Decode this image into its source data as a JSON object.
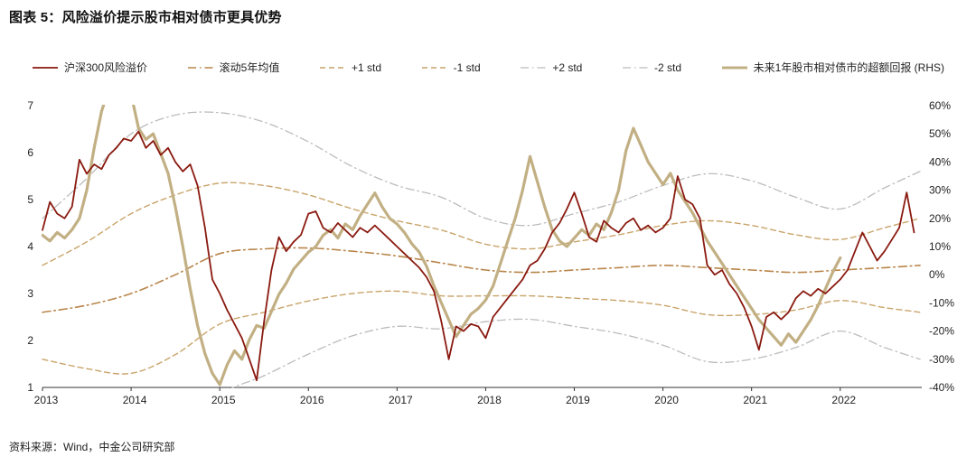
{
  "title": "图表 5：风险溢价提示股市相对债市更具优势",
  "source": "资料来源：Wind，中金公司研究部",
  "colors": {
    "erp": "#8a1a10",
    "mean": "#b9854a",
    "std1": "#c9a46a",
    "std2": "#bcbcbc",
    "rhs": "#c2b084",
    "axis": "#222222"
  },
  "chart_data": {
    "type": "line",
    "title": "图表 5：风险溢价提示股市相对债市更具优势",
    "x_range": [
      2013,
      2022.92
    ],
    "x_ticks": [
      2013,
      2014,
      2015,
      2016,
      2017,
      2018,
      2019,
      2020,
      2021,
      2022
    ],
    "left_axis": {
      "min": 1,
      "max": 7,
      "ticks": [
        1,
        2,
        3,
        4,
        5,
        6,
        7
      ]
    },
    "right_axis": {
      "min": -40,
      "max": 60,
      "tick_values": [
        60,
        50,
        40,
        30,
        20,
        10,
        0,
        -10,
        -20,
        -30,
        -40
      ],
      "tick_labels": [
        "60%",
        "50%",
        "40%",
        "30%",
        "20%",
        "10%",
        "0%",
        "-10%",
        "-20%",
        "-30%",
        "-40%"
      ]
    },
    "grid": false,
    "legend_position": "top",
    "series": [
      {
        "name": "沪深300风险溢价",
        "axis": "left",
        "style": "solid",
        "color": "#8a1a10",
        "width": 1.8,
        "z": 7,
        "smooth": false,
        "x_start": 2013.0,
        "x_step": 0.083333,
        "y": [
          4.35,
          4.95,
          4.7,
          4.6,
          4.85,
          5.85,
          5.55,
          5.75,
          5.65,
          5.95,
          6.1,
          6.3,
          6.25,
          6.45,
          6.1,
          6.25,
          5.95,
          6.1,
          5.8,
          5.6,
          5.75,
          5.3,
          4.4,
          3.3,
          3.0,
          2.65,
          2.35,
          2.05,
          1.6,
          1.15,
          2.4,
          3.5,
          4.2,
          3.9,
          4.1,
          4.25,
          4.7,
          4.75,
          4.4,
          4.3,
          4.5,
          4.35,
          4.2,
          4.4,
          4.3,
          4.45,
          4.3,
          4.15,
          4.0,
          3.85,
          3.7,
          3.55,
          3.35,
          3.05,
          2.4,
          1.6,
          2.3,
          2.2,
          2.35,
          2.3,
          2.05,
          2.5,
          2.7,
          2.9,
          3.1,
          3.3,
          3.6,
          3.7,
          3.95,
          4.3,
          4.5,
          4.8,
          5.15,
          4.7,
          4.2,
          4.1,
          4.55,
          4.4,
          4.3,
          4.5,
          4.6,
          4.35,
          4.45,
          4.3,
          4.4,
          4.6,
          5.5,
          5.0,
          4.9,
          4.6,
          3.6,
          3.4,
          3.5,
          3.2,
          3.0,
          2.7,
          2.3,
          1.8,
          2.5,
          2.6,
          2.45,
          2.6,
          2.9,
          3.05,
          2.95,
          3.1,
          3.0,
          3.15,
          3.3,
          3.5,
          3.9,
          4.3,
          4.0,
          3.7,
          3.9,
          4.15,
          4.4,
          5.15,
          4.3
        ]
      },
      {
        "name": "滚动5年均值",
        "axis": "left",
        "style": "dashdot",
        "color": "#b9854a",
        "width": 1.6,
        "z": 5,
        "smooth": true,
        "x": [
          2013,
          2013.5,
          2014,
          2014.5,
          2015,
          2015.5,
          2016,
          2016.5,
          2017,
          2017.5,
          2018,
          2018.5,
          2019,
          2019.5,
          2020,
          2020.5,
          2021,
          2021.5,
          2022,
          2022.5,
          2022.9
        ],
        "y": [
          2.6,
          2.75,
          3.0,
          3.4,
          3.85,
          3.95,
          3.97,
          3.9,
          3.8,
          3.65,
          3.5,
          3.45,
          3.5,
          3.55,
          3.6,
          3.55,
          3.5,
          3.45,
          3.5,
          3.55,
          3.6
        ]
      },
      {
        "name": "+1 std",
        "axis": "left",
        "style": "dash",
        "color": "#c9a46a",
        "width": 1.4,
        "z": 3,
        "smooth": true,
        "x": [
          2013,
          2013.5,
          2014,
          2014.5,
          2015,
          2015.5,
          2016,
          2016.5,
          2017,
          2017.5,
          2018,
          2018.5,
          2019,
          2019.5,
          2020,
          2020.5,
          2021,
          2021.5,
          2022,
          2022.5,
          2022.9
        ],
        "y": [
          3.6,
          4.1,
          4.7,
          5.1,
          5.35,
          5.3,
          5.1,
          4.8,
          4.55,
          4.35,
          4.05,
          3.95,
          4.1,
          4.25,
          4.45,
          4.55,
          4.45,
          4.25,
          4.15,
          4.4,
          4.6
        ]
      },
      {
        "name": "-1 std",
        "axis": "left",
        "style": "dash",
        "color": "#c9a46a",
        "width": 1.4,
        "z": 3,
        "smooth": true,
        "x": [
          2013,
          2013.5,
          2014,
          2014.5,
          2015,
          2015.5,
          2016,
          2016.5,
          2017,
          2017.5,
          2018,
          2018.5,
          2019,
          2019.5,
          2020,
          2020.5,
          2021,
          2021.5,
          2022,
          2022.5,
          2022.9
        ],
        "y": [
          1.6,
          1.4,
          1.3,
          1.7,
          2.35,
          2.6,
          2.84,
          3.0,
          3.05,
          2.95,
          2.95,
          2.95,
          2.9,
          2.85,
          2.75,
          2.55,
          2.55,
          2.65,
          2.85,
          2.7,
          2.6
        ]
      },
      {
        "name": "+2 std",
        "axis": "left",
        "style": "dashdot",
        "color": "#bcbcbc",
        "width": 1.3,
        "z": 2,
        "smooth": true,
        "x": [
          2013,
          2013.5,
          2014,
          2014.5,
          2015,
          2015.5,
          2016,
          2016.5,
          2017,
          2017.5,
          2018,
          2018.5,
          2019,
          2019.5,
          2020,
          2020.5,
          2021,
          2021.5,
          2022,
          2022.5,
          2022.9
        ],
        "y": [
          4.6,
          5.45,
          6.4,
          6.8,
          6.85,
          6.65,
          6.23,
          5.7,
          5.3,
          5.05,
          4.6,
          4.45,
          4.7,
          4.95,
          5.3,
          5.55,
          5.4,
          5.05,
          4.8,
          5.25,
          5.6
        ]
      },
      {
        "name": "-2 std",
        "axis": "left",
        "style": "dashdot",
        "color": "#bcbcbc",
        "width": 1.3,
        "z": 2,
        "smooth": true,
        "x": [
          2013,
          2013.5,
          2014,
          2014.5,
          2015,
          2015.5,
          2016,
          2016.5,
          2017,
          2017.5,
          2018,
          2018.5,
          2019,
          2019.5,
          2020,
          2020.5,
          2021,
          2021.5,
          2022,
          2022.5,
          2022.9
        ],
        "y": [
          0.6,
          0.05,
          -0.4,
          0.0,
          0.85,
          1.25,
          1.71,
          2.1,
          2.3,
          2.25,
          2.4,
          2.45,
          2.3,
          2.15,
          1.9,
          1.55,
          1.6,
          1.85,
          2.2,
          1.85,
          1.6
        ]
      },
      {
        "name": "未来1年股市相对债市的超额回报 (RHS)",
        "axis": "right",
        "style": "solid",
        "color": "#c2b084",
        "width": 3.2,
        "z": 6,
        "smooth": false,
        "x_start": 2013.0,
        "x_step": 0.083333,
        "y": [
          14,
          12,
          15,
          13,
          16,
          20,
          30,
          45,
          58,
          66,
          72,
          68,
          64,
          52,
          48,
          50,
          43,
          36,
          24,
          10,
          -5,
          -18,
          -28,
          -35,
          -39,
          -32,
          -27,
          -30,
          -23,
          -18,
          -19,
          -13,
          -7,
          -3,
          2,
          5,
          8,
          10,
          14,
          16,
          13,
          18,
          16,
          21,
          25,
          29,
          24,
          20,
          18,
          15,
          11,
          8,
          3,
          -4,
          -10,
          -16,
          -22,
          -18,
          -14,
          -12,
          -9,
          -4,
          4,
          12,
          20,
          30,
          42,
          33,
          24,
          16,
          12,
          10,
          13,
          16,
          14,
          18,
          16,
          22,
          30,
          44,
          52,
          46,
          40,
          36,
          32,
          36,
          30,
          26,
          22,
          17,
          12,
          8,
          4,
          0,
          -4,
          -8,
          -12,
          -16,
          -19,
          -22,
          -25,
          -21,
          -24,
          -20,
          -16,
          -11,
          -5,
          1,
          6
        ]
      }
    ],
    "legend": [
      "沪深300风险溢价",
      "滚动5年均值",
      "+1 std",
      "-1 std",
      "+2 std",
      "-2 std",
      "未来1年股市相对债市的超额回报 (RHS)"
    ]
  }
}
